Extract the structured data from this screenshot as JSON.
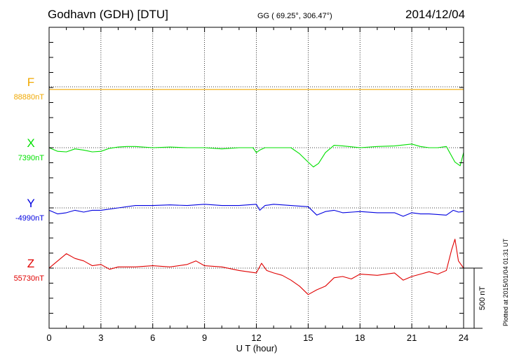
{
  "header": {
    "station": "Godhavn (GDH)  [DTU]",
    "coords": "GG ( 69.25°, 306.47°)",
    "date": "2014/12/04",
    "plotted": "Plotted at 2015/01/04 01:31 UT"
  },
  "chart_data": {
    "type": "line",
    "title": "Godhavn (GDH)  [DTU]",
    "xlabel": "U T (hour)",
    "xlim": [
      0,
      24
    ],
    "xticks": [
      0,
      3,
      6,
      9,
      12,
      15,
      18,
      21,
      24
    ],
    "x_tick_labels": [
      "0",
      "3",
      "6",
      "9",
      "12",
      "15",
      "18",
      "21",
      "24"
    ],
    "scale_bar": {
      "value": 500,
      "label": "500 nT"
    },
    "grid": true,
    "series": [
      {
        "name": "F",
        "baseline_label": "88880nT",
        "color": "#f0a800",
        "x": [
          0,
          24
        ],
        "y": [
          -22,
          -22
        ]
      },
      {
        "name": "X",
        "baseline_label": "7390nT",
        "color": "#00e000",
        "x": [
          0,
          0.5,
          1.0,
          1.5,
          2.0,
          2.5,
          3.0,
          3.5,
          4.0,
          4.5,
          5.0,
          6.0,
          7.0,
          8.0,
          9.0,
          10.0,
          11.0,
          11.8,
          12.0,
          12.2,
          12.5,
          13.0,
          14.0,
          14.5,
          15.0,
          15.3,
          15.6,
          16.0,
          16.5,
          17.0,
          18.0,
          19.0,
          20.0,
          21.0,
          21.5,
          22.0,
          22.5,
          23.0,
          23.5,
          23.8,
          24.0
        ],
        "y": [
          0,
          -30,
          -35,
          -10,
          -20,
          -35,
          -30,
          -5,
          5,
          10,
          10,
          0,
          5,
          0,
          0,
          -10,
          0,
          0,
          -40,
          -20,
          0,
          0,
          0,
          -50,
          -120,
          -160,
          -130,
          -40,
          20,
          15,
          0,
          10,
          15,
          30,
          10,
          0,
          0,
          10,
          -120,
          -150,
          -40
        ]
      },
      {
        "name": "Y",
        "baseline_label": "-4990nT",
        "color": "#0000e0",
        "x": [
          0,
          0.5,
          1.0,
          1.5,
          2.0,
          2.5,
          3.0,
          4.0,
          5.0,
          6.0,
          7.0,
          8.0,
          9.0,
          10.0,
          11.0,
          12.0,
          12.2,
          12.5,
          13.0,
          14.0,
          15.0,
          15.5,
          16.0,
          16.5,
          17.0,
          18.0,
          19.0,
          20.0,
          20.5,
          21.0,
          21.5,
          22.0,
          23.0,
          23.4,
          23.7,
          24.0
        ],
        "y": [
          -20,
          -50,
          -40,
          -20,
          -35,
          -20,
          -20,
          0,
          20,
          20,
          25,
          20,
          30,
          20,
          20,
          30,
          -20,
          20,
          30,
          20,
          10,
          -60,
          -30,
          -20,
          -40,
          -30,
          -40,
          -40,
          -70,
          -40,
          -50,
          -50,
          -60,
          -20,
          -35,
          -30
        ]
      },
      {
        "name": "Z",
        "baseline_label": "55730nT",
        "color": "#e00000",
        "x": [
          0,
          0.5,
          1.0,
          1.5,
          2.0,
          2.5,
          3.0,
          3.5,
          4.0,
          5.0,
          6.0,
          7.0,
          8.0,
          8.5,
          9.0,
          10.0,
          11.0,
          11.5,
          12.0,
          12.3,
          12.6,
          13.0,
          13.5,
          14.0,
          14.5,
          15.0,
          15.5,
          16.0,
          16.5,
          17.0,
          17.5,
          18.0,
          19.0,
          20.0,
          20.5,
          21.0,
          21.5,
          22.0,
          22.5,
          23.0,
          23.3,
          23.5,
          23.7,
          24.0
        ],
        "y": [
          0,
          60,
          120,
          80,
          60,
          20,
          30,
          -10,
          10,
          10,
          20,
          10,
          30,
          60,
          20,
          10,
          -20,
          -30,
          -40,
          40,
          -20,
          -40,
          -60,
          -100,
          -150,
          -220,
          -180,
          -150,
          -80,
          -70,
          -90,
          -50,
          -60,
          -40,
          -100,
          -70,
          -50,
          -30,
          -50,
          -20,
          150,
          240,
          60,
          0
        ]
      }
    ]
  }
}
